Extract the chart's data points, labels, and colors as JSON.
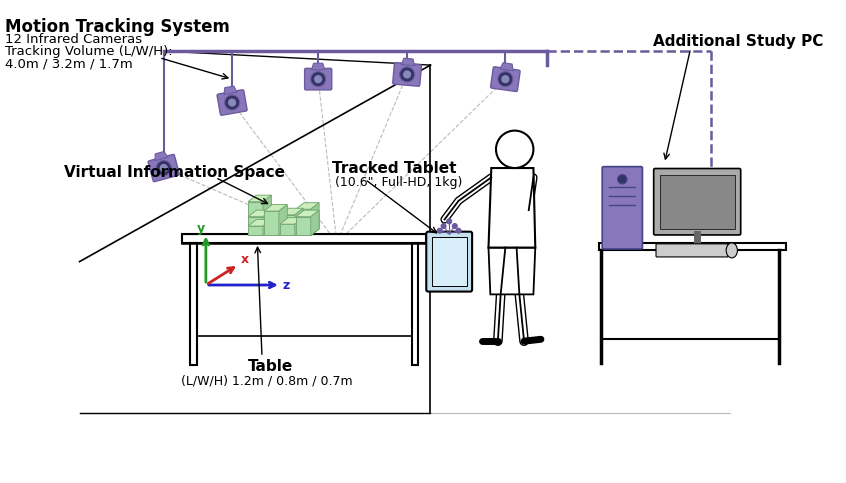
{
  "bg_color": "#ffffff",
  "purple": "#6B5B9E",
  "purple_light": "#8878BB",
  "gray_light": "#BBBBBB",
  "gray_dark": "#666666",
  "green_light": "#AADDAA",
  "green_mid": "#99CC99",
  "green_top": "#CCEEBB",
  "green_dark": "#77AA77",
  "label_motion": "Motion Tracking System",
  "label_cameras": "12 Infrared Cameras",
  "label_volume": "Tracking Volume (L/W/H):",
  "label_dims": "4.0m / 3.2m / 1.7m",
  "label_tablet": "Tracked Tablet",
  "label_tablet_sub": "(10.6\", Full-HD, 1kg)",
  "label_vis": "Virtual Information Space",
  "label_table": "Table",
  "label_table_sub": "(L/W/H) 1.2m / 0.8m / 0.7m",
  "label_pc": "Additional Study PC"
}
